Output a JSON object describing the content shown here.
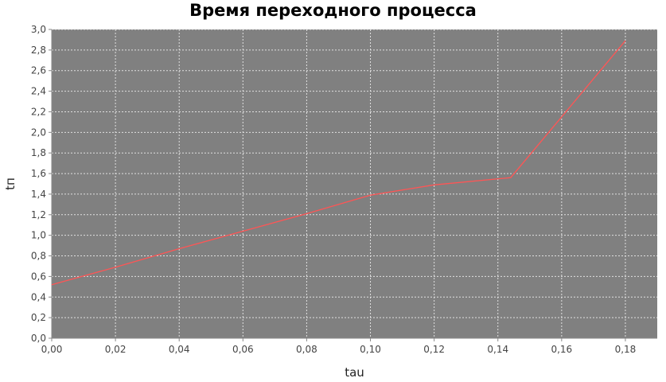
{
  "chart_data": {
    "type": "line",
    "title": "Время переходного процесса",
    "xlabel": "tau",
    "ylabel": "tп",
    "xlim": [
      0.0,
      0.19
    ],
    "ylim": [
      0.0,
      3.0
    ],
    "x_ticks": [
      "0,00",
      "0,02",
      "0,04",
      "0,06",
      "0,08",
      "0,10",
      "0,12",
      "0,14",
      "0,16",
      "0,18"
    ],
    "y_ticks": [
      "0,0",
      "0,2",
      "0,4",
      "0,6",
      "0,8",
      "1,0",
      "1,2",
      "1,4",
      "1,6",
      "1,8",
      "2,0",
      "2,2",
      "2,4",
      "2,6",
      "2,8",
      "3,0"
    ],
    "grid": true,
    "plot_background": "#808080",
    "grid_color": "#e0e0e0",
    "series": [
      {
        "color": "#ff5555",
        "x": [
          0.0,
          0.02,
          0.04,
          0.06,
          0.08,
          0.1,
          0.12,
          0.144,
          0.16,
          0.18
        ],
        "y": [
          0.52,
          0.69,
          0.87,
          1.04,
          1.21,
          1.39,
          1.49,
          1.56,
          2.15,
          2.89
        ]
      }
    ]
  }
}
